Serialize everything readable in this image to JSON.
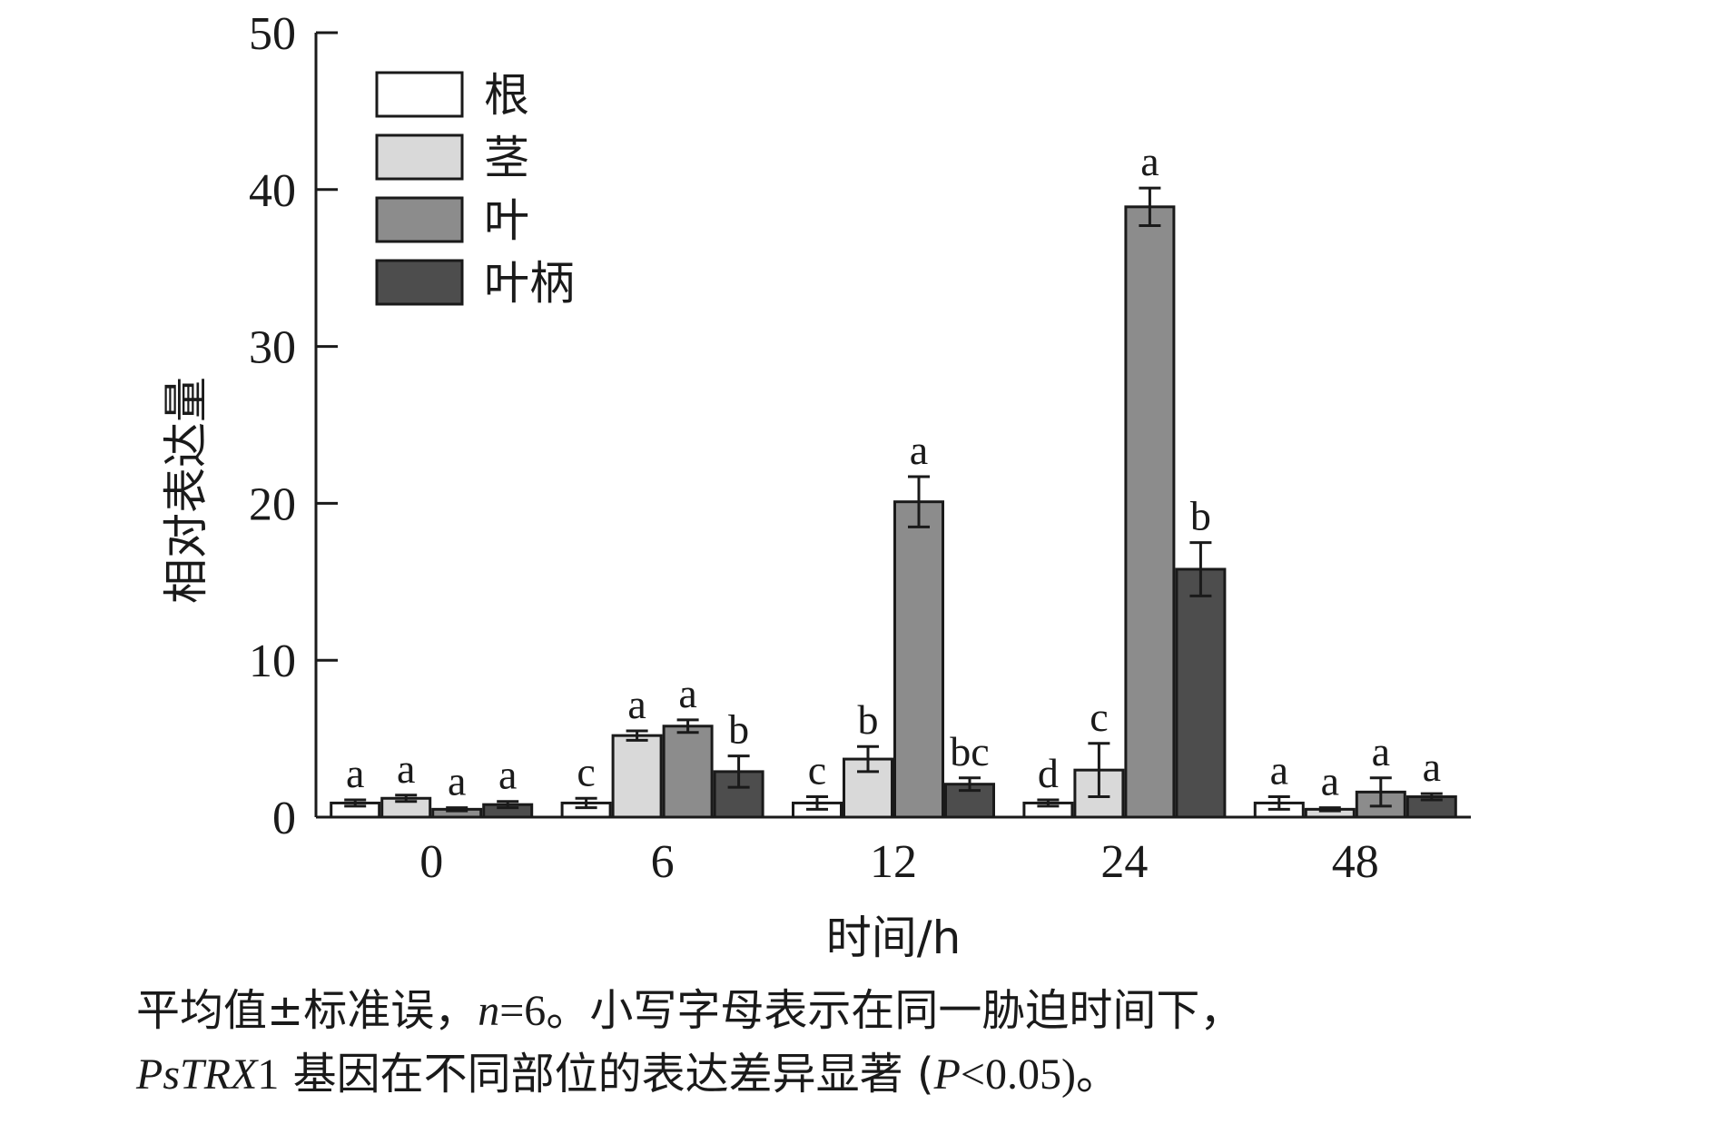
{
  "chart_data": {
    "type": "bar",
    "xlabel": "时间/h",
    "ylabel": "相对表达量",
    "ylim": [
      0,
      50
    ],
    "yticks": [
      0,
      10,
      20,
      30,
      40,
      50
    ],
    "legend_position": "top-left",
    "categories": [
      "0",
      "6",
      "12",
      "24",
      "48"
    ],
    "series": [
      {
        "name": "根",
        "color": "#ffffff",
        "values": [
          0.9,
          0.9,
          0.9,
          0.9,
          0.9
        ],
        "errors": [
          0.2,
          0.3,
          0.4,
          0.2,
          0.4
        ],
        "labels": [
          "a",
          "c",
          "c",
          "d",
          "a"
        ]
      },
      {
        "name": "茎",
        "color": "#d9d9d9",
        "values": [
          1.2,
          5.2,
          3.7,
          3.0,
          0.5
        ],
        "errors": [
          0.2,
          0.3,
          0.8,
          1.7,
          0.1
        ],
        "labels": [
          "a",
          "a",
          "b",
          "c",
          "a"
        ]
      },
      {
        "name": "叶",
        "color": "#8c8c8c",
        "values": [
          0.5,
          5.8,
          20.1,
          38.9,
          1.6
        ],
        "errors": [
          0.1,
          0.4,
          1.6,
          1.2,
          0.9
        ],
        "labels": [
          "a",
          "a",
          "a",
          "a",
          "a"
        ]
      },
      {
        "name": "叶柄",
        "color": "#4d4d4d",
        "values": [
          0.8,
          2.9,
          2.1,
          15.8,
          1.3
        ],
        "errors": [
          0.2,
          1.0,
          0.4,
          1.7,
          0.2
        ],
        "labels": [
          "a",
          "b",
          "bc",
          "b",
          "a"
        ]
      }
    ]
  },
  "caption": {
    "line1_a": "平均值±标准误，",
    "line1_n": "n",
    "line1_eq": "=6",
    "line1_b": "。小写字母表示在同一胁迫时间下，",
    "line2_gene": "PsTRX",
    "line2_gene_num": "1",
    "line2_a": " 基因在不同部位的表达差异显著 (",
    "line2_p": "P",
    "line2_b": "<0.05)",
    "line2_end": "。"
  }
}
